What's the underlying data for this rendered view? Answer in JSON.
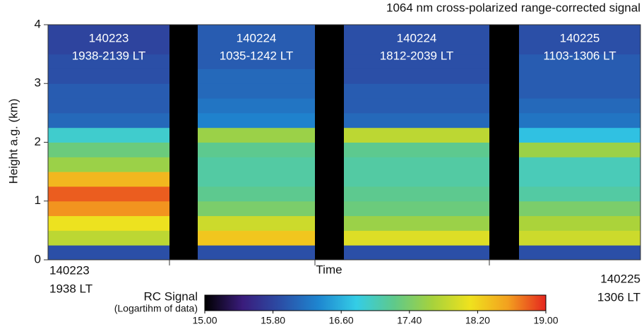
{
  "chart_data": {
    "type": "heatmap",
    "title": "1064 nm cross-polarized range-corrected signal",
    "ylabel": "Height a.g. (km)",
    "xlabel": "Time",
    "x_start": [
      "140223",
      "1938 LT"
    ],
    "x_end": [
      "140225",
      "1306 LT"
    ],
    "ylim": [
      0,
      4
    ],
    "yticks": [
      0,
      1,
      2,
      3,
      4
    ],
    "y_bins": [
      0,
      0.25,
      0.5,
      0.75,
      1,
      1.25,
      1.5,
      1.75,
      2,
      2.25,
      2.5,
      2.75,
      3,
      3.25,
      3.5,
      3.75,
      4
    ],
    "gap_color": "#000000",
    "panels": [
      {
        "label": [
          "140223",
          "1938-2139 LT"
        ],
        "values": [
          15.9,
          17.8,
          18.1,
          18.6,
          18.8,
          18.4,
          17.6,
          17.3,
          16.9,
          16.1,
          16.0,
          16.0,
          15.9,
          15.9,
          15.8,
          15.8
        ]
      },
      {
        "label": [
          "140224",
          "1035-1242 LT"
        ],
        "values": [
          15.9,
          18.3,
          17.9,
          17.4,
          17.2,
          17.1,
          17.1,
          17.2,
          17.6,
          16.3,
          16.2,
          16.1,
          16.1,
          16.0,
          16.0,
          16.0
        ]
      },
      {
        "label": [
          "140224",
          "1812-2039 LT"
        ],
        "values": [
          15.9,
          18.0,
          17.6,
          17.3,
          17.2,
          17.1,
          17.1,
          17.2,
          17.8,
          16.1,
          16.0,
          16.0,
          15.9,
          15.9,
          15.9,
          15.9
        ]
      },
      {
        "label": [
          "140225",
          "1103-1306 LT"
        ],
        "values": [
          15.9,
          17.9,
          17.7,
          17.4,
          17.1,
          17.0,
          17.0,
          17.6,
          16.7,
          16.2,
          16.1,
          16.0,
          16.0,
          16.0,
          15.9,
          15.9
        ]
      }
    ],
    "colorbar": {
      "title": "RC Signal",
      "subtitle": "(Logartihm of data)",
      "lim": [
        15,
        19
      ],
      "colormap": [
        "#000000",
        "#3a1c7c",
        "#2b4ea6",
        "#1e86d0",
        "#34cde6",
        "#5fc98a",
        "#a6d23c",
        "#efe21e",
        "#f3a01f",
        "#e5261f"
      ],
      "ticks": [
        {
          "value": 15,
          "label": "15.00"
        },
        {
          "value": 15.8,
          "label": "15.80"
        },
        {
          "value": 16.6,
          "label": "16.60"
        },
        {
          "value": 17.4,
          "label": "17.40"
        },
        {
          "value": 18.2,
          "label": "18.20"
        },
        {
          "value": 19,
          "label": "19.00"
        }
      ]
    }
  }
}
